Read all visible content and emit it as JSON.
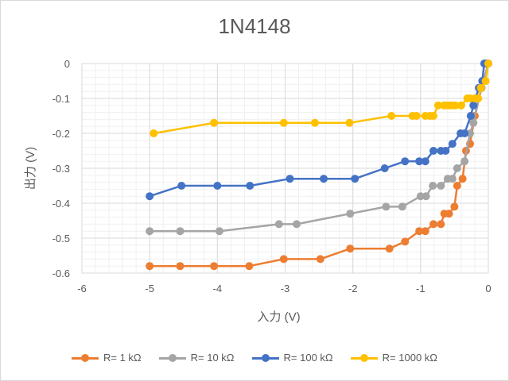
{
  "chart_data": {
    "type": "line",
    "title": "1N4148",
    "xlabel": "入力 (V)",
    "ylabel": "出力 (V)",
    "xlim": [
      -6,
      0
    ],
    "ylim": [
      -0.6,
      0
    ],
    "xticks": [
      "-6",
      "-5",
      "-4",
      "-3",
      "-2",
      "-1",
      "0"
    ],
    "yticks": [
      "0",
      "-0.1",
      "-0.2",
      "-0.3",
      "-0.4",
      "-0.5",
      "-0.6"
    ],
    "grid": true,
    "legend_position": "bottom",
    "series": [
      {
        "name": "R= 1 kΩ",
        "color": "#ED7D31",
        "x": [
          -5,
          -4.55,
          -4.05,
          -3.53,
          -3.02,
          -2.48,
          -2.04,
          -1.46,
          -1.23,
          -1.02,
          -0.93,
          -0.81,
          -0.7,
          -0.65,
          -0.58,
          -0.5,
          -0.46,
          -0.38,
          -0.33,
          -0.27,
          -0.2,
          -0.1,
          0
        ],
        "y": [
          -0.58,
          -0.58,
          -0.58,
          -0.58,
          -0.56,
          -0.56,
          -0.53,
          -0.53,
          -0.51,
          -0.48,
          -0.48,
          -0.46,
          -0.46,
          -0.43,
          -0.43,
          -0.41,
          -0.35,
          -0.33,
          -0.25,
          -0.23,
          -0.15,
          -0.07,
          0
        ]
      },
      {
        "name": "R= 10 kΩ",
        "color": "#A5A5A5",
        "x": [
          -5,
          -4.55,
          -3.97,
          -3.09,
          -2.83,
          -2.04,
          -1.51,
          -1.27,
          -1.0,
          -0.92,
          -0.82,
          -0.7,
          -0.6,
          -0.53,
          -0.46,
          -0.35,
          -0.27,
          -0.22,
          -0.1,
          0
        ],
        "y": [
          -0.48,
          -0.48,
          -0.48,
          -0.46,
          -0.46,
          -0.43,
          -0.41,
          -0.41,
          -0.38,
          -0.38,
          -0.35,
          -0.35,
          -0.33,
          -0.33,
          -0.3,
          -0.28,
          -0.2,
          -0.17,
          -0.07,
          0
        ]
      },
      {
        "name": "R= 100 kΩ",
        "color": "#4472C4",
        "x": [
          -5,
          -4.53,
          -4.0,
          -3.52,
          -2.93,
          -2.43,
          -1.97,
          -1.53,
          -1.23,
          -1.02,
          -0.93,
          -0.81,
          -0.7,
          -0.63,
          -0.53,
          -0.41,
          -0.35,
          -0.26,
          -0.22,
          -0.19,
          -0.14,
          -0.09,
          -0.06,
          -0.03
        ],
        "y": [
          -0.38,
          -0.35,
          -0.35,
          -0.35,
          -0.33,
          -0.33,
          -0.33,
          -0.3,
          -0.28,
          -0.28,
          -0.28,
          -0.25,
          -0.25,
          -0.25,
          -0.23,
          -0.2,
          -0.2,
          -0.15,
          -0.12,
          -0.1,
          -0.07,
          -0.05,
          0,
          0
        ]
      },
      {
        "name": "R= 1000 kΩ",
        "color": "#FFC000",
        "x": [
          -4.94,
          -4.05,
          -3.02,
          -2.56,
          -2.05,
          -1.43,
          -1.12,
          -1.06,
          -0.93,
          -0.86,
          -0.81,
          -0.74,
          -0.65,
          -0.6,
          -0.55,
          -0.49,
          -0.4,
          -0.31,
          -0.27,
          -0.2,
          -0.15,
          -0.11,
          -0.04,
          0
        ],
        "y": [
          -0.2,
          -0.17,
          -0.17,
          -0.17,
          -0.17,
          -0.15,
          -0.15,
          -0.15,
          -0.15,
          -0.15,
          -0.15,
          -0.12,
          -0.12,
          -0.12,
          -0.12,
          -0.12,
          -0.12,
          -0.1,
          -0.1,
          -0.1,
          -0.1,
          -0.07,
          -0.05,
          0
        ]
      }
    ]
  }
}
